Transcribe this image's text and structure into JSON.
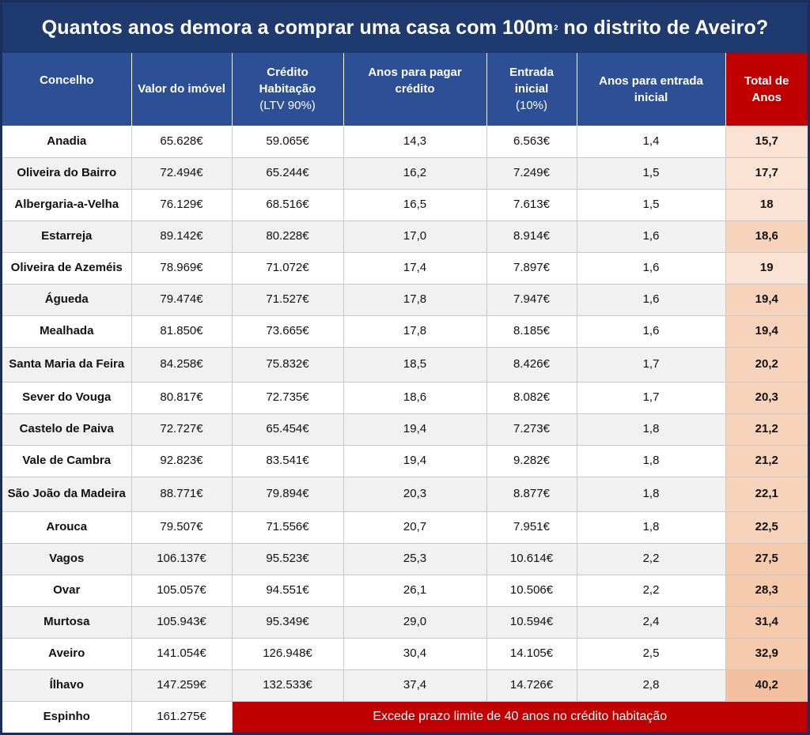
{
  "title": {
    "main": "Quantos anos demora a comprar uma casa com 100m",
    "sup": "2",
    "tail": " no distrito de Aveiro?"
  },
  "headers": {
    "concelho": "Concelho",
    "valor": "Valor do imóvel",
    "credito": "Crédito Habitação",
    "credito_sub": "(LTV 90%)",
    "anos_pagar": "Anos para pagar crédito",
    "entrada": "Entrada inicial",
    "entrada_sub": "(10%)",
    "anos_entrada": "Anos para entrada inicial",
    "total": "Total de Anos"
  },
  "rows": [
    {
      "concelho": "Anadia",
      "valor": "65.628€",
      "credito": "59.065€",
      "anos_pagar": "14,3",
      "entrada": "6.563€",
      "anos_entrada": "1,4",
      "total": "15,7"
    },
    {
      "concelho": "Oliveira do Bairro",
      "valor": "72.494€",
      "credito": "65.244€",
      "anos_pagar": "16,2",
      "entrada": "7.249€",
      "anos_entrada": "1,5",
      "total": "17,7"
    },
    {
      "concelho": "Albergaria-a-Velha",
      "valor": "76.129€",
      "credito": "68.516€",
      "anos_pagar": "16,5",
      "entrada": "7.613€",
      "anos_entrada": "1,5",
      "total": "18"
    },
    {
      "concelho": "Estarreja",
      "valor": "89.142€",
      "credito": "80.228€",
      "anos_pagar": "17,0",
      "entrada": "8.914€",
      "anos_entrada": "1,6",
      "total": "18,6"
    },
    {
      "concelho": "Oliveira de Azeméis",
      "valor": "78.969€",
      "credito": "71.072€",
      "anos_pagar": "17,4",
      "entrada": "7.897€",
      "anos_entrada": "1,6",
      "total": "19"
    },
    {
      "concelho": "Águeda",
      "valor": "79.474€",
      "credito": "71.527€",
      "anos_pagar": "17,8",
      "entrada": "7.947€",
      "anos_entrada": "1,6",
      "total": "19,4"
    },
    {
      "concelho": "Mealhada",
      "valor": "81.850€",
      "credito": "73.665€",
      "anos_pagar": "17,8",
      "entrada": "8.185€",
      "anos_entrada": "1,6",
      "total": "19,4"
    },
    {
      "concelho": "Santa Maria da Feira",
      "valor": "84.258€",
      "credito": "75.832€",
      "anos_pagar": "18,5",
      "entrada": "8.426€",
      "anos_entrada": "1,7",
      "total": "20,2"
    },
    {
      "concelho": "Sever do Vouga",
      "valor": "80.817€",
      "credito": "72.735€",
      "anos_pagar": "18,6",
      "entrada": "8.082€",
      "anos_entrada": "1,7",
      "total": "20,3"
    },
    {
      "concelho": "Castelo de Paiva",
      "valor": "72.727€",
      "credito": "65.454€",
      "anos_pagar": "19,4",
      "entrada": "7.273€",
      "anos_entrada": "1,8",
      "total": "21,2"
    },
    {
      "concelho": "Vale de Cambra",
      "valor": "92.823€",
      "credito": "83.541€",
      "anos_pagar": "19,4",
      "entrada": "9.282€",
      "anos_entrada": "1,8",
      "total": "21,2"
    },
    {
      "concelho": "São João da Madeira",
      "valor": "88.771€",
      "credito": "79.894€",
      "anos_pagar": "20,3",
      "entrada": "8.877€",
      "anos_entrada": "1,8",
      "total": "22,1"
    },
    {
      "concelho": "Arouca",
      "valor": "79.507€",
      "credito": "71.556€",
      "anos_pagar": "20,7",
      "entrada": "7.951€",
      "anos_entrada": "1,8",
      "total": "22,5"
    },
    {
      "concelho": "Vagos",
      "valor": "106.137€",
      "credito": "95.523€",
      "anos_pagar": "25,3",
      "entrada": "10.614€",
      "anos_entrada": "2,2",
      "total": "27,5"
    },
    {
      "concelho": "Ovar",
      "valor": "105.057€",
      "credito": "94.551€",
      "anos_pagar": "26,1",
      "entrada": "10.506€",
      "anos_entrada": "2,2",
      "total": "28,3"
    },
    {
      "concelho": "Murtosa",
      "valor": "105.943€",
      "credito": "95.349€",
      "anos_pagar": "29,0",
      "entrada": "10.594€",
      "anos_entrada": "2,4",
      "total": "31,4"
    },
    {
      "concelho": "Aveiro",
      "valor": "141.054€",
      "credito": "126.948€",
      "anos_pagar": "30,4",
      "entrada": "14.105€",
      "anos_entrada": "2,5",
      "total": "32,9"
    },
    {
      "concelho": "Ílhavo",
      "valor": "147.259€",
      "credito": "132.533€",
      "anos_pagar": "37,4",
      "entrada": "14.726€",
      "anos_entrada": "2,8",
      "total": "40,2"
    }
  ],
  "last_row": {
    "concelho": "Espinho",
    "valor": "161.275€",
    "note": "Excede prazo limite de 40 anos no crédito habitação"
  },
  "colors": {
    "header_bg": "#2c4f96",
    "title_bg": "#1f3a6e",
    "total_header_bg": "#c00000",
    "total_cell_bg": "#f8d9c6",
    "exceed_bg": "#c00000"
  }
}
